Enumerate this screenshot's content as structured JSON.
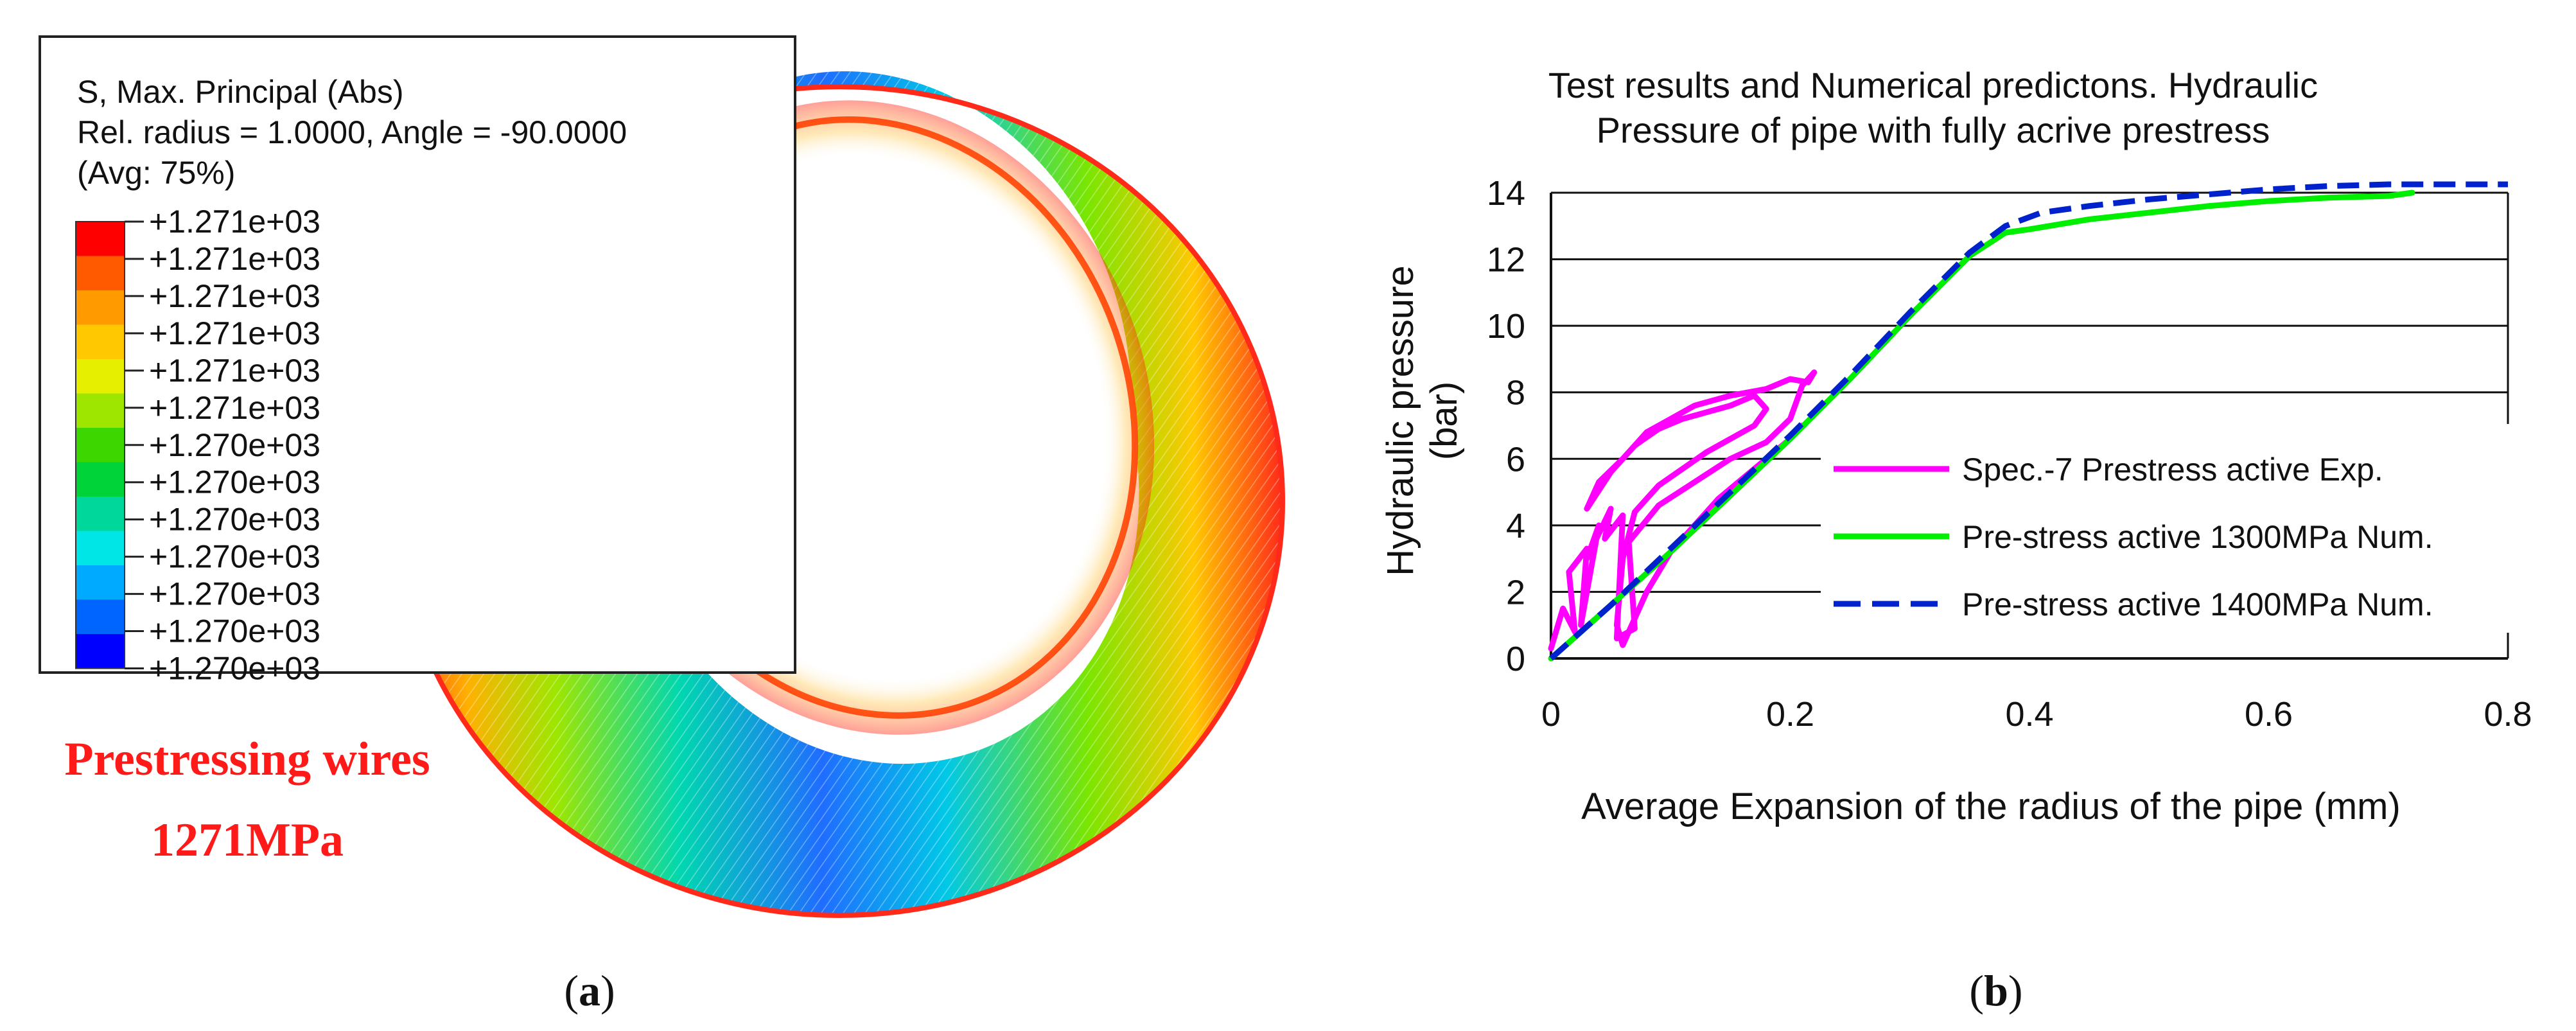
{
  "panel_a": {
    "legend_title_lines": [
      "S, Max. Principal (Abs)",
      "Rel. radius = 1.0000, Angle = -90.0000",
      "(Avg: 75%)"
    ],
    "legend_colors": [
      "#ff0000",
      "#ff5a00",
      "#ff9a00",
      "#ffc800",
      "#e6ef00",
      "#9ee600",
      "#3ed600",
      "#00d23a",
      "#00d79a",
      "#00e6e6",
      "#00aaff",
      "#0064ff",
      "#0000ff"
    ],
    "legend_values": [
      "+1.271e+03",
      "+1.271e+03",
      "+1.271e+03",
      "+1.271e+03",
      "+1.271e+03",
      "+1.271e+03",
      "+1.270e+03",
      "+1.270e+03",
      "+1.270e+03",
      "+1.270e+03",
      "+1.270e+03",
      "+1.270e+03",
      "+1.270e+03"
    ],
    "annotation_line1": "Prestressing wires",
    "annotation_line2": "1271MPa",
    "annotation_color": "#ff1a1a",
    "caption_letter": "a"
  },
  "panel_b": {
    "caption_letter": "b"
  },
  "chart_data": {
    "type": "line",
    "title_lines": [
      "Test results and Numerical predictons. Hydraulic",
      "Pressure  of pipe  with fully acrive prestress"
    ],
    "xlabel": "Average Expansion of the radius of the pipe (mm)",
    "ylabel_lines": [
      "Hydraulic pressure",
      "(bar)"
    ],
    "xlim": [
      0,
      0.8
    ],
    "ylim": [
      0,
      14
    ],
    "xticks": [
      0,
      0.2,
      0.4,
      0.6,
      0.8
    ],
    "xtick_labels": [
      "0",
      "0.2",
      "0.4",
      "0.6",
      "0.8"
    ],
    "yticks": [
      0,
      2,
      4,
      6,
      8,
      10,
      12,
      14
    ],
    "ytick_labels": [
      "0",
      "2",
      "4",
      "6",
      "8",
      "10",
      "12",
      "14"
    ],
    "grid": "horizontal",
    "legend_position": "center-right",
    "series": [
      {
        "name": "Spec.-7 Prestress active Exp.",
        "color": "#ff00ff",
        "dash": "solid",
        "x": [
          0.0,
          0.01,
          0.02,
          0.015,
          0.03,
          0.025,
          0.04,
          0.03,
          0.05,
          0.045,
          0.06,
          0.055,
          0.07,
          0.065,
          0.09,
          0.12,
          0.15,
          0.18,
          0.2,
          0.21,
          0.22,
          0.215,
          0.2,
          0.18,
          0.15,
          0.12,
          0.1,
          0.08,
          0.06,
          0.04,
          0.03,
          0.05,
          0.07,
          0.09,
          0.11,
          0.13,
          0.15,
          0.17,
          0.18,
          0.17,
          0.15,
          0.13,
          0.11,
          0.09,
          0.07,
          0.06,
          0.055,
          0.06,
          0.08,
          0.1,
          0.12,
          0.14,
          0.16,
          0.18,
          0.2,
          0.21
        ],
        "y": [
          0.3,
          1.5,
          0.8,
          2.6,
          3.3,
          1.0,
          4.0,
          3.0,
          4.5,
          3.6,
          4.3,
          0.6,
          0.9,
          3.5,
          4.6,
          5.3,
          6.0,
          6.5,
          7.2,
          8.2,
          8.6,
          8.3,
          8.4,
          8.1,
          7.9,
          7.6,
          7.2,
          6.8,
          6.0,
          5.3,
          4.5,
          5.6,
          6.4,
          6.9,
          7.2,
          7.4,
          7.6,
          7.9,
          7.5,
          7.0,
          6.6,
          6.2,
          5.7,
          5.2,
          4.4,
          3.0,
          1.0,
          0.4,
          2.0,
          3.2,
          4.0,
          4.8,
          5.4,
          6.0,
          6.6,
          7.0
        ]
      },
      {
        "name": "Pre-stress active 1300MPa Num.",
        "color": "#00ee00",
        "dash": "solid",
        "x": [
          0.0,
          0.05,
          0.1,
          0.15,
          0.2,
          0.25,
          0.3,
          0.35,
          0.38,
          0.4,
          0.45,
          0.5,
          0.55,
          0.6,
          0.65,
          0.7,
          0.72
        ],
        "y": [
          0.0,
          1.6,
          3.2,
          4.9,
          6.6,
          8.4,
          10.3,
          12.1,
          12.8,
          12.9,
          13.2,
          13.4,
          13.6,
          13.75,
          13.85,
          13.9,
          14.0
        ]
      },
      {
        "name": "Pre-stress active 1400MPa Num.",
        "color": "#0022cc",
        "dash": "dashed",
        "x": [
          0.0,
          0.05,
          0.1,
          0.15,
          0.2,
          0.25,
          0.3,
          0.35,
          0.38,
          0.41,
          0.45,
          0.5,
          0.55,
          0.6,
          0.65,
          0.7,
          0.75,
          0.8
        ],
        "y": [
          0.0,
          1.6,
          3.3,
          5.0,
          6.7,
          8.5,
          10.4,
          12.2,
          13.0,
          13.4,
          13.6,
          13.8,
          13.95,
          14.1,
          14.2,
          14.25,
          14.25,
          14.25
        ]
      }
    ]
  }
}
